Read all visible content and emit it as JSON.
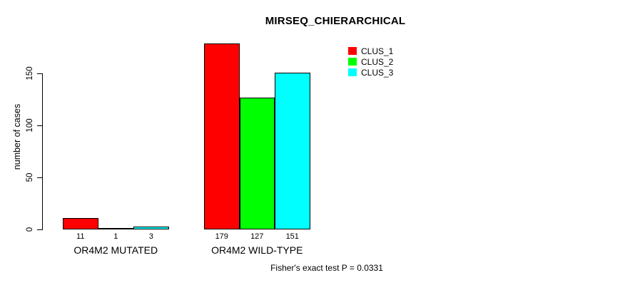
{
  "chart_data": {
    "type": "bar",
    "title": "MIRSEQ_CHIERARCHICAL",
    "ylabel": "number of cases",
    "xlabel": "",
    "categories": [
      "OR4M2 MUTATED",
      "OR4M2 WILD-TYPE"
    ],
    "series": [
      {
        "name": "CLUS_1",
        "color": "#FF0000",
        "values": [
          11,
          179
        ]
      },
      {
        "name": "CLUS_2",
        "color": "#00FF00",
        "values": [
          1,
          127
        ]
      },
      {
        "name": "CLUS_3",
        "color": "#00FFFF",
        "values": [
          3,
          151
        ]
      }
    ],
    "yticks": [
      0,
      50,
      100,
      150
    ],
    "ylim": [
      0,
      185
    ],
    "grid": false,
    "bar_value_labels_shown": true,
    "legend_position": "top-right",
    "bar_border_color": "#000000",
    "background_color": "#FFFFFF",
    "text_color": "#000000"
  },
  "annotations": {
    "footer": "Fisher's exact test P = 0.0331"
  }
}
